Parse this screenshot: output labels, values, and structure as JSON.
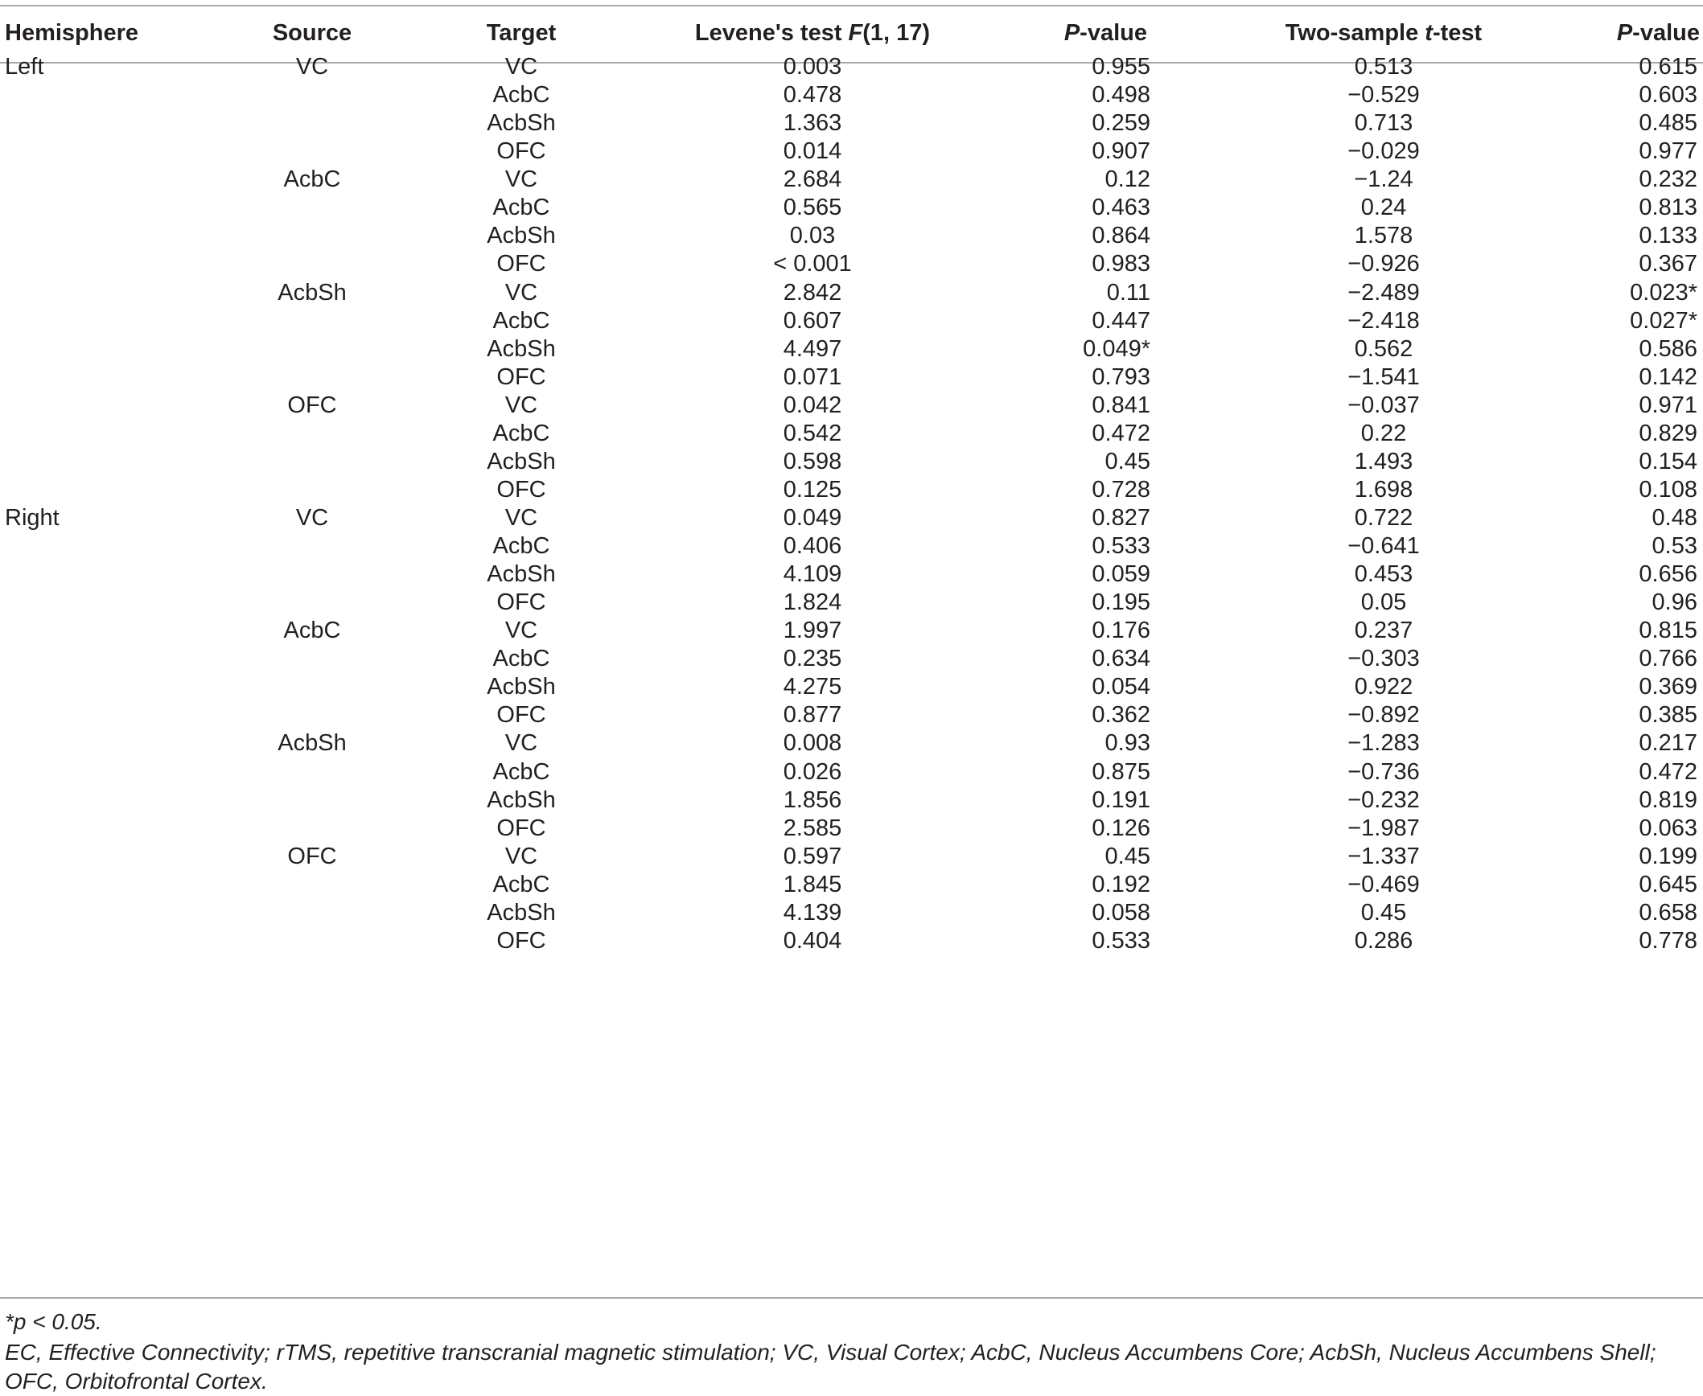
{
  "table": {
    "headers": {
      "hemisphere": "Hemisphere",
      "source": "Source",
      "target": "Target",
      "levene_prefix": "Levene's test ",
      "levene_italic": "F",
      "levene_suffix": "(1, 17)",
      "p1_italic": "P",
      "p1_suffix": "-value",
      "t_prefix": "Two-sample ",
      "t_italic": "t",
      "t_suffix": "-test",
      "p2_italic": "P",
      "p2_suffix": "-value"
    },
    "rows": [
      {
        "hemisphere": "Left",
        "source": "VC",
        "target": "VC",
        "levene": "0.003",
        "p1": "0.955",
        "t": "0.513",
        "p2": "0.615"
      },
      {
        "hemisphere": "",
        "source": "",
        "target": "AcbC",
        "levene": "0.478",
        "p1": "0.498",
        "t": "−0.529",
        "p2": "0.603"
      },
      {
        "hemisphere": "",
        "source": "",
        "target": "AcbSh",
        "levene": "1.363",
        "p1": "0.259",
        "t": "0.713",
        "p2": "0.485"
      },
      {
        "hemisphere": "",
        "source": "",
        "target": "OFC",
        "levene": "0.014",
        "p1": "0.907",
        "t": "−0.029",
        "p2": "0.977"
      },
      {
        "hemisphere": "",
        "source": "AcbC",
        "target": "VC",
        "levene": "2.684",
        "p1": "0.12",
        "t": "−1.24",
        "p2": "0.232"
      },
      {
        "hemisphere": "",
        "source": "",
        "target": "AcbC",
        "levene": "0.565",
        "p1": "0.463",
        "t": "0.24",
        "p2": "0.813"
      },
      {
        "hemisphere": "",
        "source": "",
        "target": "AcbSh",
        "levene": "0.03",
        "p1": "0.864",
        "t": "1.578",
        "p2": "0.133"
      },
      {
        "hemisphere": "",
        "source": "",
        "target": "OFC",
        "levene": "< 0.001",
        "p1": "0.983",
        "t": "−0.926",
        "p2": "0.367"
      },
      {
        "hemisphere": "",
        "source": "AcbSh",
        "target": "VC",
        "levene": "2.842",
        "p1": "0.11",
        "t": "−2.489",
        "p2": "0.023*"
      },
      {
        "hemisphere": "",
        "source": "",
        "target": "AcbC",
        "levene": "0.607",
        "p1": "0.447",
        "t": "−2.418",
        "p2": "0.027*"
      },
      {
        "hemisphere": "",
        "source": "",
        "target": "AcbSh",
        "levene": "4.497",
        "p1": "0.049*",
        "t": "0.562",
        "p2": "0.586"
      },
      {
        "hemisphere": "",
        "source": "",
        "target": "OFC",
        "levene": "0.071",
        "p1": "0.793",
        "t": "−1.541",
        "p2": "0.142"
      },
      {
        "hemisphere": "",
        "source": "OFC",
        "target": "VC",
        "levene": "0.042",
        "p1": "0.841",
        "t": "−0.037",
        "p2": "0.971"
      },
      {
        "hemisphere": "",
        "source": "",
        "target": "AcbC",
        "levene": "0.542",
        "p1": "0.472",
        "t": "0.22",
        "p2": "0.829"
      },
      {
        "hemisphere": "",
        "source": "",
        "target": "AcbSh",
        "levene": "0.598",
        "p1": "0.45",
        "t": "1.493",
        "p2": "0.154"
      },
      {
        "hemisphere": "",
        "source": "",
        "target": "OFC",
        "levene": "0.125",
        "p1": "0.728",
        "t": "1.698",
        "p2": "0.108"
      },
      {
        "hemisphere": "Right",
        "source": "VC",
        "target": "VC",
        "levene": "0.049",
        "p1": "0.827",
        "t": "0.722",
        "p2": "0.48"
      },
      {
        "hemisphere": "",
        "source": "",
        "target": "AcbC",
        "levene": "0.406",
        "p1": "0.533",
        "t": "−0.641",
        "p2": "0.53"
      },
      {
        "hemisphere": "",
        "source": "",
        "target": "AcbSh",
        "levene": "4.109",
        "p1": "0.059",
        "t": "0.453",
        "p2": "0.656"
      },
      {
        "hemisphere": "",
        "source": "",
        "target": "OFC",
        "levene": "1.824",
        "p1": "0.195",
        "t": "0.05",
        "p2": "0.96"
      },
      {
        "hemisphere": "",
        "source": "AcbC",
        "target": "VC",
        "levene": "1.997",
        "p1": "0.176",
        "t": "0.237",
        "p2": "0.815"
      },
      {
        "hemisphere": "",
        "source": "",
        "target": "AcbC",
        "levene": "0.235",
        "p1": "0.634",
        "t": "−0.303",
        "p2": "0.766"
      },
      {
        "hemisphere": "",
        "source": "",
        "target": "AcbSh",
        "levene": "4.275",
        "p1": "0.054",
        "t": "0.922",
        "p2": "0.369"
      },
      {
        "hemisphere": "",
        "source": "",
        "target": "OFC",
        "levene": "0.877",
        "p1": "0.362",
        "t": "−0.892",
        "p2": "0.385"
      },
      {
        "hemisphere": "",
        "source": "AcbSh",
        "target": "VC",
        "levene": "0.008",
        "p1": "0.93",
        "t": "−1.283",
        "p2": "0.217"
      },
      {
        "hemisphere": "",
        "source": "",
        "target": "AcbC",
        "levene": "0.026",
        "p1": "0.875",
        "t": "−0.736",
        "p2": "0.472"
      },
      {
        "hemisphere": "",
        "source": "",
        "target": "AcbSh",
        "levene": "1.856",
        "p1": "0.191",
        "t": "−0.232",
        "p2": "0.819"
      },
      {
        "hemisphere": "",
        "source": "",
        "target": "OFC",
        "levene": "2.585",
        "p1": "0.126",
        "t": "−1.987",
        "p2": "0.063"
      },
      {
        "hemisphere": "",
        "source": "OFC",
        "target": "VC",
        "levene": "0.597",
        "p1": "0.45",
        "t": "−1.337",
        "p2": "0.199"
      },
      {
        "hemisphere": "",
        "source": "",
        "target": "AcbC",
        "levene": "1.845",
        "p1": "0.192",
        "t": "−0.469",
        "p2": "0.645"
      },
      {
        "hemisphere": "",
        "source": "",
        "target": "AcbSh",
        "levene": "4.139",
        "p1": "0.058",
        "t": "0.45",
        "p2": "0.658"
      },
      {
        "hemisphere": "",
        "source": "",
        "target": "OFC",
        "levene": "0.404",
        "p1": "0.533",
        "t": "0.286",
        "p2": "0.778"
      }
    ]
  },
  "footnotes": {
    "significance": "*p < 0.05.",
    "abbreviations_line1": "EC, Effective Connectivity; rTMS, repetitive transcranial magnetic stimulation; VC, Visual Cortex; AcbC, Nucleus Accumbens Core; AcbSh, Nucleus Accumbens Shell;",
    "abbreviations_line2": "OFC, Orbitofrontal Cortex."
  }
}
